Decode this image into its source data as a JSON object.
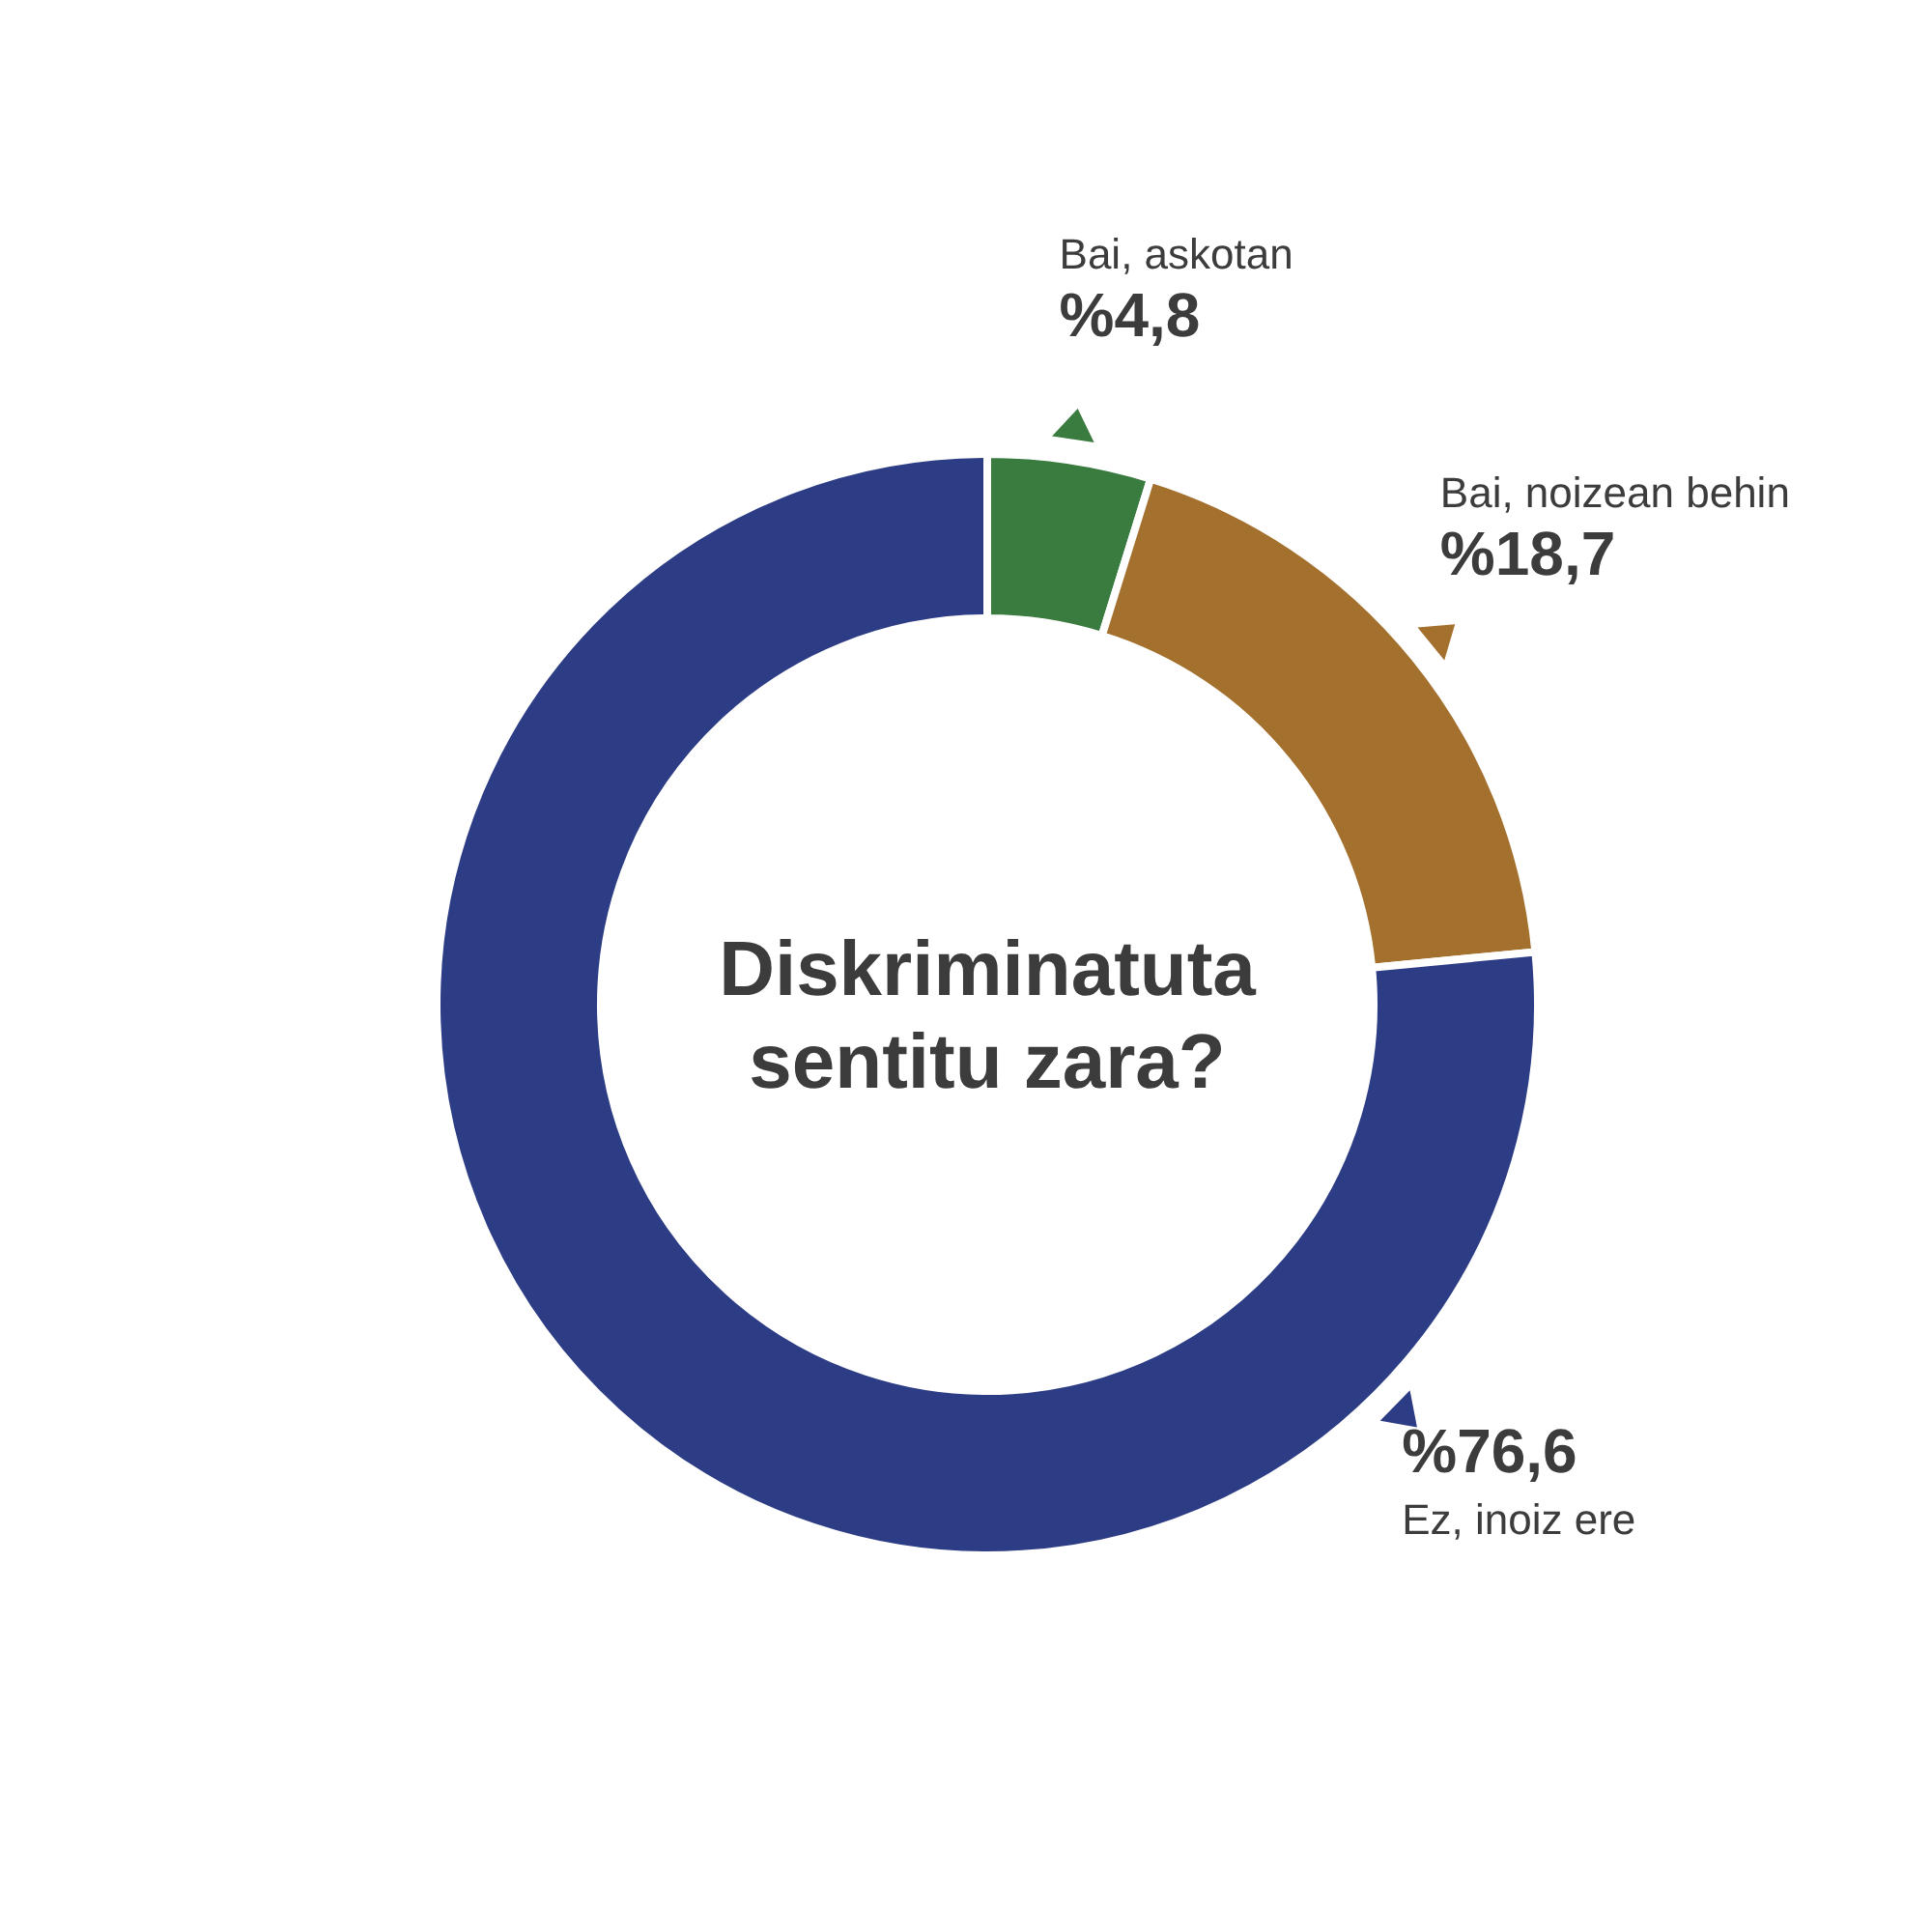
{
  "chart_data": {
    "type": "donut",
    "title": "Diskriminatuta sentitu zara?",
    "categories": [
      "Bai, askotan",
      "Bai, noizean behin",
      "Ez, inoiz ere"
    ],
    "values": [
      4.8,
      18.7,
      76.6
    ],
    "colors": [
      "#3a7b3f",
      "#a4702e",
      "#2d3d85"
    ],
    "value_labels": [
      "%4,8",
      "%18,7",
      "%76,6"
    ]
  }
}
